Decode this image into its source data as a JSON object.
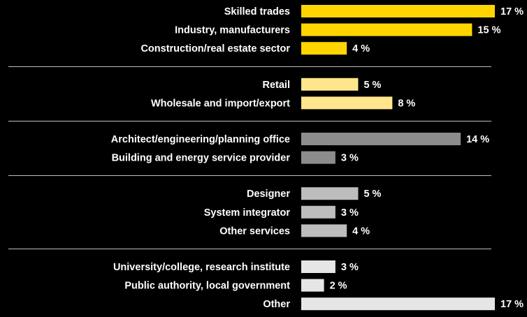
{
  "chart_data": {
    "type": "bar",
    "orientation": "horizontal",
    "title": "",
    "xlabel": "",
    "ylabel": "",
    "xlim": [
      0,
      17
    ],
    "grid": false,
    "value_suffix": " %",
    "groups": [
      {
        "color": "#ffd500",
        "items": [
          {
            "label": "Skilled trades",
            "value": 17
          },
          {
            "label": "Industry, manufacturers",
            "value": 15
          },
          {
            "label": "Construction/real estate sector",
            "value": 4
          }
        ]
      },
      {
        "color": "#ffe68c",
        "items": [
          {
            "label": "Retail",
            "value": 5
          },
          {
            "label": "Wholesale and import/export",
            "value": 8
          }
        ]
      },
      {
        "color": "#8c8c8c",
        "items": [
          {
            "label": "Architect/engineering/planning office",
            "value": 14
          },
          {
            "label": "Building and energy service provider",
            "value": 3
          }
        ]
      },
      {
        "color": "#bdbdbd",
        "items": [
          {
            "label": "Designer",
            "value": 5
          },
          {
            "label": "System integrator",
            "value": 3
          },
          {
            "label": "Other services",
            "value": 4
          }
        ]
      },
      {
        "color": "#e6e6e6",
        "items": [
          {
            "label": "University/college, research institute",
            "value": 3
          },
          {
            "label": "Public authority, local government",
            "value": 2
          },
          {
            "label": "Other",
            "value": 17
          }
        ]
      }
    ]
  }
}
